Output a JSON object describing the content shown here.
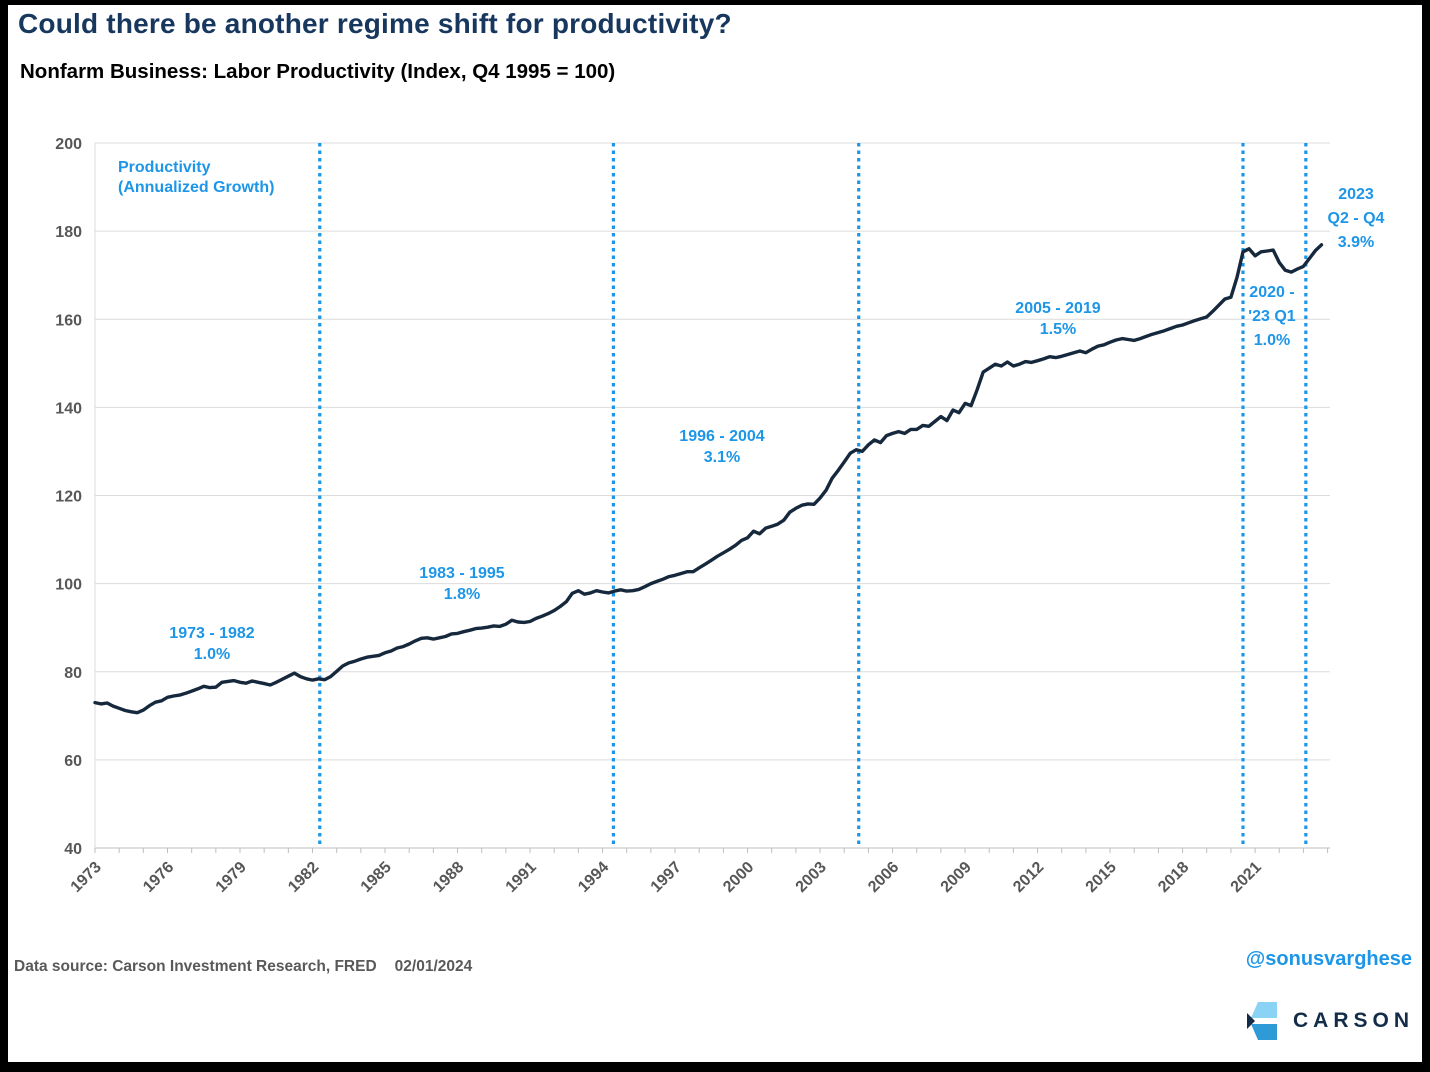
{
  "header": {
    "title": "Could there be another regime shift for productivity?",
    "subtitle": "Nonfarm Business: Labor Productivity (Index, Q4 1995 = 100)"
  },
  "annotations": {
    "legend": {
      "line1": "Productivity",
      "line2": "(Annualized Growth)"
    },
    "regime1": {
      "period": "1973 - 1982",
      "rate": "1.0%"
    },
    "regime2": {
      "period": "1983 - 1995",
      "rate": "1.8%"
    },
    "regime3": {
      "period": "1996 - 2004",
      "rate": "3.1%"
    },
    "regime4": {
      "period": "2005 - 2019",
      "rate": "1.5%"
    },
    "regime5": {
      "line1": "2020 -",
      "line2": "'23 Q1",
      "line3": "1.0%"
    },
    "regime6": {
      "line1": "2023",
      "line2": "Q2 - Q4",
      "line3": "3.9%"
    }
  },
  "footer": {
    "source": "Data source: Carson Investment Research, FRED",
    "date": "02/01/2024",
    "handle": "@sonusvarghese",
    "brand": "CARSON"
  },
  "chart_data": {
    "type": "line",
    "title": "Could there be another regime shift for productivity?",
    "subtitle": "Nonfarm Business: Labor Productivity (Index, Q4 1995 = 100)",
    "ylabel": "Index, Q4 1995 = 100",
    "ylim": [
      40,
      200
    ],
    "ytick_step": 20,
    "xlim": [
      1973,
      2024.1
    ],
    "xtick_years": [
      1973,
      1976,
      1979,
      1982,
      1985,
      1988,
      1991,
      1994,
      1997,
      2000,
      2003,
      2006,
      2009,
      2012,
      2015,
      2018,
      2021
    ],
    "grid": "horizontal",
    "legend_position": "top-left-inside",
    "regime_lines_years": [
      1982.3,
      1994.45,
      2004.6,
      2020.5,
      2023.1
    ],
    "regimes": [
      {
        "period": "1973 - 1982",
        "annualized_growth_pct": 1.0
      },
      {
        "period": "1983 - 1995",
        "annualized_growth_pct": 1.8
      },
      {
        "period": "1996 - 2004",
        "annualized_growth_pct": 3.1
      },
      {
        "period": "2005 - 2019",
        "annualized_growth_pct": 1.5
      },
      {
        "period": "2020 - '23 Q1",
        "annualized_growth_pct": 1.0
      },
      {
        "period": "2023 Q2 - Q4",
        "annualized_growth_pct": 3.9
      }
    ],
    "series": [
      {
        "name": "Nonfarm Business: Labor Productivity",
        "start_year": 1973,
        "frequency": "quarterly",
        "values": [
          73.0,
          72.7,
          72.9,
          72.2,
          71.7,
          71.2,
          70.9,
          70.7,
          71.3,
          72.3,
          73.1,
          73.4,
          74.2,
          74.5,
          74.7,
          75.1,
          75.6,
          76.1,
          76.7,
          76.4,
          76.5,
          77.6,
          77.8,
          78.0,
          77.6,
          77.4,
          77.9,
          77.6,
          77.3,
          77.0,
          77.6,
          78.3,
          79.0,
          79.7,
          78.9,
          78.4,
          78.1,
          78.4,
          78.2,
          78.9,
          80.1,
          81.3,
          82.0,
          82.4,
          82.9,
          83.3,
          83.5,
          83.7,
          84.3,
          84.7,
          85.4,
          85.7,
          86.3,
          87.0,
          87.6,
          87.7,
          87.4,
          87.7,
          88.0,
          88.6,
          88.7,
          89.1,
          89.4,
          89.8,
          89.9,
          90.1,
          90.4,
          90.3,
          90.8,
          91.7,
          91.3,
          91.2,
          91.4,
          92.1,
          92.6,
          93.2,
          93.9,
          94.8,
          95.9,
          97.8,
          98.4,
          97.6,
          97.9,
          98.4,
          98.1,
          97.9,
          98.3,
          98.6,
          98.3,
          98.4,
          98.7,
          99.3,
          100.0,
          100.5,
          101.0,
          101.6,
          101.9,
          102.3,
          102.7,
          102.7,
          103.6,
          104.4,
          105.3,
          106.2,
          107.0,
          107.8,
          108.7,
          109.8,
          110.4,
          111.9,
          111.3,
          112.6,
          113.0,
          113.5,
          114.4,
          116.2,
          117.1,
          117.8,
          118.1,
          118.0,
          119.4,
          121.2,
          123.9,
          125.7,
          127.6,
          129.6,
          130.4,
          130.0,
          131.5,
          132.6,
          132.0,
          133.6,
          134.1,
          134.5,
          134.1,
          135.0,
          135.0,
          135.9,
          135.7,
          136.8,
          137.9,
          137.0,
          139.4,
          138.8,
          140.9,
          140.4,
          144.0,
          148.0,
          148.9,
          149.8,
          149.4,
          150.3,
          149.4,
          149.8,
          150.4,
          150.2,
          150.6,
          151.0,
          151.5,
          151.3,
          151.6,
          152.0,
          152.4,
          152.8,
          152.4,
          153.2,
          153.9,
          154.2,
          154.8,
          155.3,
          155.6,
          155.4,
          155.2,
          155.6,
          156.1,
          156.6,
          157.0,
          157.4,
          157.9,
          158.4,
          158.7,
          159.2,
          159.7,
          160.1,
          160.5,
          161.8,
          163.2,
          164.6,
          165.0,
          169.5,
          175.3,
          176.0,
          174.4,
          175.3,
          175.5,
          175.7,
          172.9,
          171.1,
          170.7,
          171.4,
          172.0,
          173.8,
          175.6,
          176.9
        ]
      }
    ],
    "colors": {
      "line": "#16283C",
      "accent_blue": "#1E96E8",
      "grid": "#DCDCDC",
      "axis": "#BFBFBF",
      "tick_text": "#575757",
      "title_navy": "#17375E",
      "logo_light_blue": "#8BD3F5",
      "logo_mid_blue": "#2E9BD6",
      "logo_navy": "#152C49"
    }
  }
}
